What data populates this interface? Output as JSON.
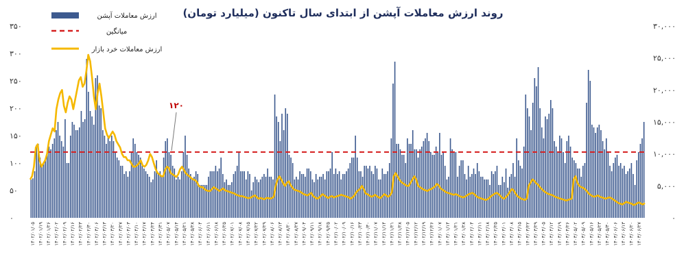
{
  "chart_data": {
    "type": "bar",
    "title": "روند ارزش معاملات آپشن از ابتدای سال تاکنون (میلیارد تومان)",
    "legend_position": "top-left",
    "left_axis": {
      "ylim": [
        0,
        350
      ],
      "ticks": [
        "۰",
        "۵۰",
        "۱۰۰",
        "۱۵۰",
        "۲۰۰",
        "۲۵۰",
        "۳۰۰",
        "۳۵۰"
      ]
    },
    "right_axis": {
      "ylim": [
        0,
        30000
      ],
      "ticks": [
        "۰",
        "۵,۰۰۰",
        "۱۰,۰۰۰",
        "۱۵,۰۰۰",
        "۲۰,۰۰۰",
        "۲۵,۰۰۰",
        "۳۰,۰۰۰"
      ]
    },
    "x_tick_labels": [
      "۱۴۰۲/۰۱/۰۵",
      "۱۴۰۲/۰۱/۱۹",
      "۱۴۰۲/۰۱/۲۶",
      "۱۴۰۲/۰۲/۰۲",
      "۱۴۰۲/۰۲/۰۹",
      "۱۴۰۲/۰۲/۱۶",
      "۱۴۰۲/۰۲/۲۳",
      "۱۴۰۲/۰۲/۳۰",
      "۱۴۰۲/۰۳/۰۶",
      "۱۴۰۲/۰۳/۱۳",
      "۱۴۰۲/۰۳/۲۰",
      "۱۴۰۲/۰۳/۲۷",
      "۱۴۰۲/۰۴/۰۳",
      "۱۴۰۲/۰۴/۱۰",
      "۱۴۰۲/۰۴/۱۷",
      "۱۴۰۲/۰۴/۲۴",
      "۱۴۰۲/۰۴/۳۱",
      "۱۴۰۲/۰۵/۰۷",
      "۱۴۰۲/۰۵/۱۴",
      "۱۴۰۲/۰۵/۲۱",
      "۱۴۰۲/۰۵/۲۸",
      "۱۴۰۲/۰۶/۰۴",
      "۱۴۰۲/۰۶/۱۱",
      "۱۴۰۲/۰۶/۱۸",
      "۱۴۰۲/۰۶/۲۵",
      "۱۴۰۲/۰۷/۰۱",
      "۱۴۰۲/۰۷/۰۸",
      "۱۴۰۲/۰۷/۱۵",
      "۱۴۰۲/۰۷/۲۲",
      "۱۴۰۲/۰۷/۲۹",
      "۱۴۰۲/۰۸/۰۶",
      "۱۴۰۲/۰۸/۱۳",
      "۱۴۰۲/۰۸/۲۰",
      "۱۴۰۲/۰۸/۲۷",
      "۱۴۰۲/۰۹/۰۴",
      "۱۴۰۲/۰۹/۱۱",
      "۱۴۰۲/۰۹/۱۸",
      "۱۴۰۲/۰۹/۲۵",
      "۱۴۰۲/۱۰/۰۲",
      "۱۴۰۲/۱۰/۰۹",
      "۱۴۰۲/۱۰/۱۶",
      "۱۴۰۲/۱۰/۲۳",
      "۱۴۰۲/۱۰/۳۰",
      "۱۴۰۲/۱۱/۰۷",
      "۱۴۰۲/۱۱/۱۴",
      "۱۴۰۲/۱۱/۲۱",
      "۱۴۰۲/۱۱/۲۸",
      "۱۴۰۲/۱۲/۰۵",
      "۱۴۰۲/۱۲/۱۲",
      "۱۴۰۲/۱۲/۱۹",
      "۱۴۰۲/۱۲/۲۶",
      "۱۴۰۳/۰۱/۰۷",
      "۱۴۰۳/۰۱/۱۴",
      "۱۴۰۳/۰۱/۲۱",
      "۱۴۰۳/۰۱/۲۸",
      "۱۴۰۳/۰۲/۰۴",
      "۱۴۰۳/۰۲/۱۱",
      "۱۴۰۳/۰۲/۱۸",
      "۱۴۰۳/۰۲/۲۵",
      "۱۴۰۳/۰۳/۰۱",
      "۱۴۰۳/۰۳/۰۸",
      "۱۴۰۳/۰۳/۱۵",
      "۱۴۰۳/۰۳/۲۲",
      "۱۴۰۳/۰۳/۲۹",
      "۱۴۰۳/۰۴/۰۵",
      "۱۴۰۳/۰۴/۱۲",
      "۱۴۰۳/۰۴/۱۹",
      "۱۴۰۳/۰۴/۲۶",
      "۱۴۰۳/۰۵/۰۲",
      "۱۴۰۳/۰۵/۰۹",
      "۱۴۰۳/۰۵/۱۶",
      "۱۴۰۳/۰۵/۲۳",
      "۱۴۰۳/۰۵/۳۰",
      "۱۴۰۳/۰۶/۰۶",
      "۱۴۰۳/۰۶/۱۳",
      "۱۴۰۳/۰۶/۲۰",
      "۱۴۰۳/۰۶/۲۷"
    ],
    "series": [
      {
        "name": "ارزش معاملات آپشن",
        "kind": "bar",
        "axis": "left",
        "color": "#3d5a8f",
        "values": [
          70,
          72,
          85,
          133,
          135,
          110,
          95,
          98,
          105,
          118,
          130,
          125,
          135,
          145,
          160,
          175,
          150,
          140,
          130,
          180,
          100,
          100,
          150,
          175,
          170,
          160,
          160,
          165,
          195,
          175,
          180,
          290,
          230,
          195,
          185,
          170,
          255,
          260,
          205,
          200,
          160,
          150,
          135,
          150,
          140,
          150,
          140,
          120,
          110,
          105,
          95,
          95,
          80,
          85,
          75,
          85,
          120,
          145,
          135,
          120,
          115,
          110,
          95,
          90,
          85,
          80,
          75,
          65,
          70,
          85,
          105,
          80,
          85,
          75,
          110,
          140,
          145,
          120,
          115,
          95,
          90,
          70,
          75,
          70,
          85,
          120,
          150,
          115,
          90,
          80,
          70,
          75,
          85,
          80,
          60,
          60,
          60,
          60,
          60,
          75,
          85,
          85,
          85,
          95,
          85,
          90,
          110,
          80,
          65,
          70,
          60,
          60,
          65,
          80,
          85,
          95,
          120,
          85,
          85,
          85,
          70,
          85,
          80,
          50,
          65,
          75,
          70,
          65,
          70,
          75,
          80,
          75,
          90,
          75,
          75,
          70,
          225,
          185,
          175,
          140,
          190,
          160,
          200,
          190,
          115,
          110,
          100,
          70,
          75,
          70,
          85,
          80,
          80,
          75,
          90,
          90,
          85,
          70,
          65,
          80,
          70,
          75,
          75,
          80,
          70,
          85,
          85,
          90,
          120,
          80,
          90,
          80,
          85,
          70,
          80,
          80,
          85,
          90,
          100,
          110,
          110,
          150,
          110,
          85,
          85,
          75,
          95,
          95,
          90,
          95,
          85,
          80,
          95,
          90,
          70,
          70,
          90,
          80,
          80,
          85,
          100,
          145,
          245,
          285,
          135,
          135,
          125,
          115,
          115,
          100,
          145,
          135,
          135,
          160,
          125,
          125,
          110,
          125,
          130,
          140,
          145,
          155,
          140,
          120,
          115,
          115,
          130,
          120,
          155,
          115,
          120,
          95,
          70,
          75,
          145,
          125,
          120,
          120,
          75,
          95,
          105,
          105,
          80,
          70,
          95,
          75,
          80,
          90,
          80,
          100,
          85,
          75,
          75,
          70,
          70,
          70,
          60,
          85,
          80,
          85,
          95,
          60,
          60,
          75,
          65,
          90,
          55,
          75,
          80,
          100,
          75,
          145,
          105,
          95,
          90,
          130,
          225,
          200,
          185,
          160,
          210,
          255,
          240,
          275,
          200,
          165,
          145,
          185,
          180,
          190,
          215,
          200,
          140,
          130,
          120,
          150,
          145,
          120,
          100,
          140,
          150,
          130,
          110,
          105,
          100,
          90,
          90,
          75,
          95,
          100,
          210,
          270,
          250,
          170,
          165,
          155,
          165,
          170,
          160,
          140,
          125,
          145,
          120,
          95,
          85,
          100,
          110,
          115,
          95,
          100,
          90,
          95,
          80,
          85,
          90,
          100,
          80,
          60,
          105,
          120,
          135,
          145,
          175
        ],
        "avg": 120
      },
      {
        "name": "ارزش معاملات خرد بازار",
        "kind": "line",
        "axis": "right",
        "color": "#f5b800",
        "values": [
          6000,
          6500,
          8000,
          11000,
          11500,
          9000,
          8000,
          8500,
          9000,
          10000,
          12000,
          13000,
          14000,
          13500,
          17000,
          18500,
          19500,
          20000,
          17500,
          16500,
          18000,
          19000,
          18500,
          17000,
          18500,
          20000,
          21500,
          22000,
          20500,
          21000,
          23000,
          25500,
          24500,
          22000,
          19000,
          17000,
          19500,
          21000,
          19000,
          16500,
          14000,
          13000,
          12500,
          13000,
          13500,
          13000,
          12000,
          11500,
          11000,
          10000,
          9500,
          9500,
          9000,
          9000,
          8500,
          8000,
          8000,
          8200,
          8500,
          9000,
          8200,
          8000,
          8300,
          9000,
          10000,
          9500,
          8500,
          7600,
          7000,
          6800,
          6500,
          6500,
          7500,
          8000,
          7800,
          7000,
          6800,
          6600,
          6400,
          6800,
          7600,
          8000,
          7500,
          7000,
          6700,
          6500,
          6200,
          6000,
          5900,
          5600,
          5000,
          4800,
          4800,
          4500,
          4300,
          4200,
          4200,
          4500,
          4800,
          4600,
          4400,
          4200,
          4400,
          4600,
          4300,
          4200,
          4100,
          4000,
          3900,
          3800,
          3600,
          3500,
          3400,
          3400,
          3300,
          3200,
          3100,
          3100,
          3200,
          3400,
          3500,
          3200,
          3000,
          3100,
          3000,
          2900,
          3100,
          3100,
          3000,
          3100,
          3300,
          5000,
          6000,
          6500,
          6000,
          5400,
          5000,
          5500,
          5700,
          5100,
          4700,
          4400,
          4300,
          4200,
          4100,
          3900,
          3700,
          3600,
          3500,
          3700,
          3900,
          3400,
          3200,
          3000,
          3100,
          3400,
          3700,
          3500,
          3300,
          3100,
          3300,
          3400,
          3200,
          3300,
          3400,
          3500,
          3600,
          3500,
          3400,
          3300,
          3200,
          3000,
          3200,
          3500,
          4000,
          4300,
          4500,
          5000,
          4500,
          3800,
          3700,
          3500,
          3300,
          3400,
          3600,
          3400,
          3200,
          3100,
          3400,
          3700,
          3500,
          3300,
          3500,
          4000,
          6500,
          7000,
          6500,
          6000,
          5600,
          5400,
          5200,
          5000,
          5000,
          5500,
          6000,
          6500,
          6000,
          5000,
          4800,
          4600,
          4400,
          4300,
          4200,
          4400,
          4500,
          4700,
          4900,
          5300,
          5100,
          4600,
          4400,
          4200,
          4000,
          3900,
          3800,
          3700,
          3600,
          3700,
          3600,
          3400,
          3300,
          3200,
          3300,
          3500,
          3700,
          3800,
          3900,
          3700,
          3400,
          3200,
          3100,
          3000,
          2900,
          2800,
          2900,
          3100,
          3400,
          3600,
          3800,
          3900,
          3700,
          3400,
          3100,
          3000,
          3300,
          3600,
          4100,
          4500,
          4300,
          3800,
          3400,
          3200,
          3000,
          2900,
          2800,
          3000,
          5000,
          5500,
          6000,
          5800,
          5400,
          5200,
          4800,
          4500,
          4200,
          4000,
          3800,
          3700,
          3600,
          3500,
          3300,
          3200,
          3100,
          3000,
          2900,
          2800,
          2700,
          2800,
          2900,
          3000,
          6000,
          6500,
          5500,
          5000,
          4800,
          4700,
          4500,
          4200,
          3800,
          3600,
          3400,
          3300,
          3400,
          3500,
          3300,
          3200,
          3100,
          3000,
          3100,
          3200,
          3100,
          2900,
          2700,
          2500,
          2300,
          2200,
          2100,
          2300,
          2500,
          2400,
          2300,
          2200,
          2000,
          2100,
          2300,
          2400,
          2200,
          2100,
          2300
        ]
      },
      {
        "name": "میانگین",
        "kind": "dashed-line",
        "axis": "left",
        "color": "#d62020",
        "value": 120
      }
    ],
    "annotation": {
      "text": "۱۲۰",
      "value": 120
    }
  }
}
